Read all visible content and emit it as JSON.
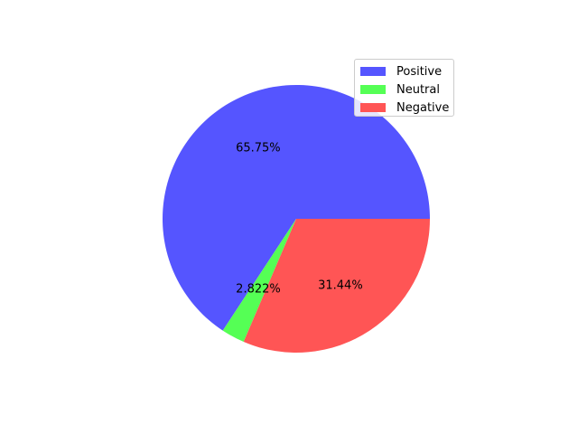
{
  "chart_data": {
    "type": "pie",
    "title": "",
    "start_angle_deg": 0,
    "direction": "counterclockwise",
    "slices": [
      {
        "label": "Positive",
        "value": 65.75,
        "pct_label": "65.75%",
        "color": "#5555ff"
      },
      {
        "label": "Neutral",
        "value": 2.822,
        "pct_label": "2.822%",
        "color": "#55ff55"
      },
      {
        "label": "Negative",
        "value": 31.44,
        "pct_label": "31.44%",
        "color": "#ff5555"
      }
    ],
    "legend": {
      "placement": "upper-right",
      "entries": [
        "Positive",
        "Neutral",
        "Negative"
      ]
    }
  }
}
